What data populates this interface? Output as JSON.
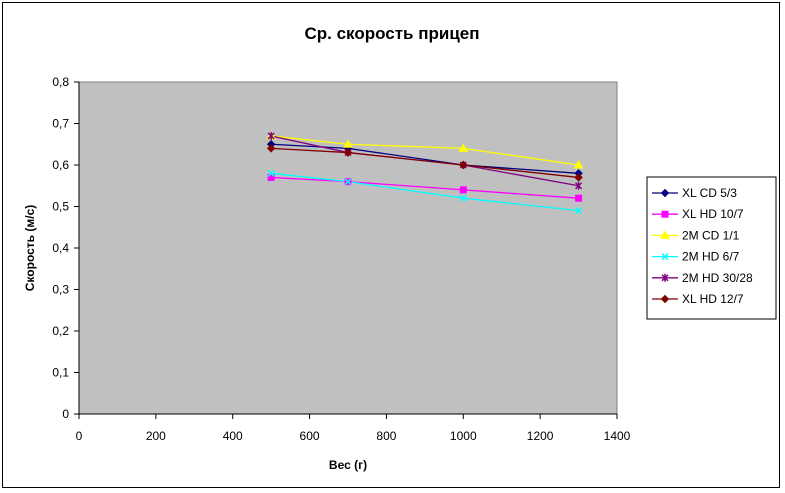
{
  "chart_data": {
    "type": "line",
    "title": "Ср. скорость прицеп",
    "xlabel": "Вес (г)",
    "ylabel": "Скорость (м/с)",
    "xlim": [
      0,
      1400
    ],
    "ylim": [
      0,
      0.8
    ],
    "x_ticks": [
      "0",
      "200",
      "400",
      "600",
      "800",
      "1000",
      "1200",
      "1400"
    ],
    "y_ticks": [
      "0",
      "0,1",
      "0,2",
      "0,3",
      "0,4",
      "0,5",
      "0,6",
      "0,7",
      "0,8"
    ],
    "x": [
      500,
      700,
      1000,
      1300
    ],
    "plot_background": "#c0c0c0",
    "grid": false,
    "legend_position": "right",
    "series": [
      {
        "name": "XL CD 5/3",
        "values": [
          0.65,
          0.64,
          0.6,
          0.58
        ],
        "color": "#000080",
        "marker": "diamond"
      },
      {
        "name": "XL HD 10/7",
        "values": [
          0.57,
          0.56,
          0.54,
          0.52
        ],
        "color": "#ff00ff",
        "marker": "square"
      },
      {
        "name": "2M CD 1/1",
        "values": [
          0.67,
          0.65,
          0.64,
          0.6
        ],
        "color": "#ffff00",
        "marker": "triangle"
      },
      {
        "name": "2M HD 6/7",
        "values": [
          0.58,
          0.56,
          0.52,
          0.49
        ],
        "color": "#00ffff",
        "marker": "x"
      },
      {
        "name": "2M HD 30/28",
        "values": [
          0.67,
          0.63,
          0.6,
          0.55
        ],
        "color": "#800080",
        "marker": "star"
      },
      {
        "name": "XL HD 12/7",
        "values": [
          0.64,
          0.63,
          0.6,
          0.57
        ],
        "color": "#800000",
        "marker": "circle"
      }
    ]
  }
}
